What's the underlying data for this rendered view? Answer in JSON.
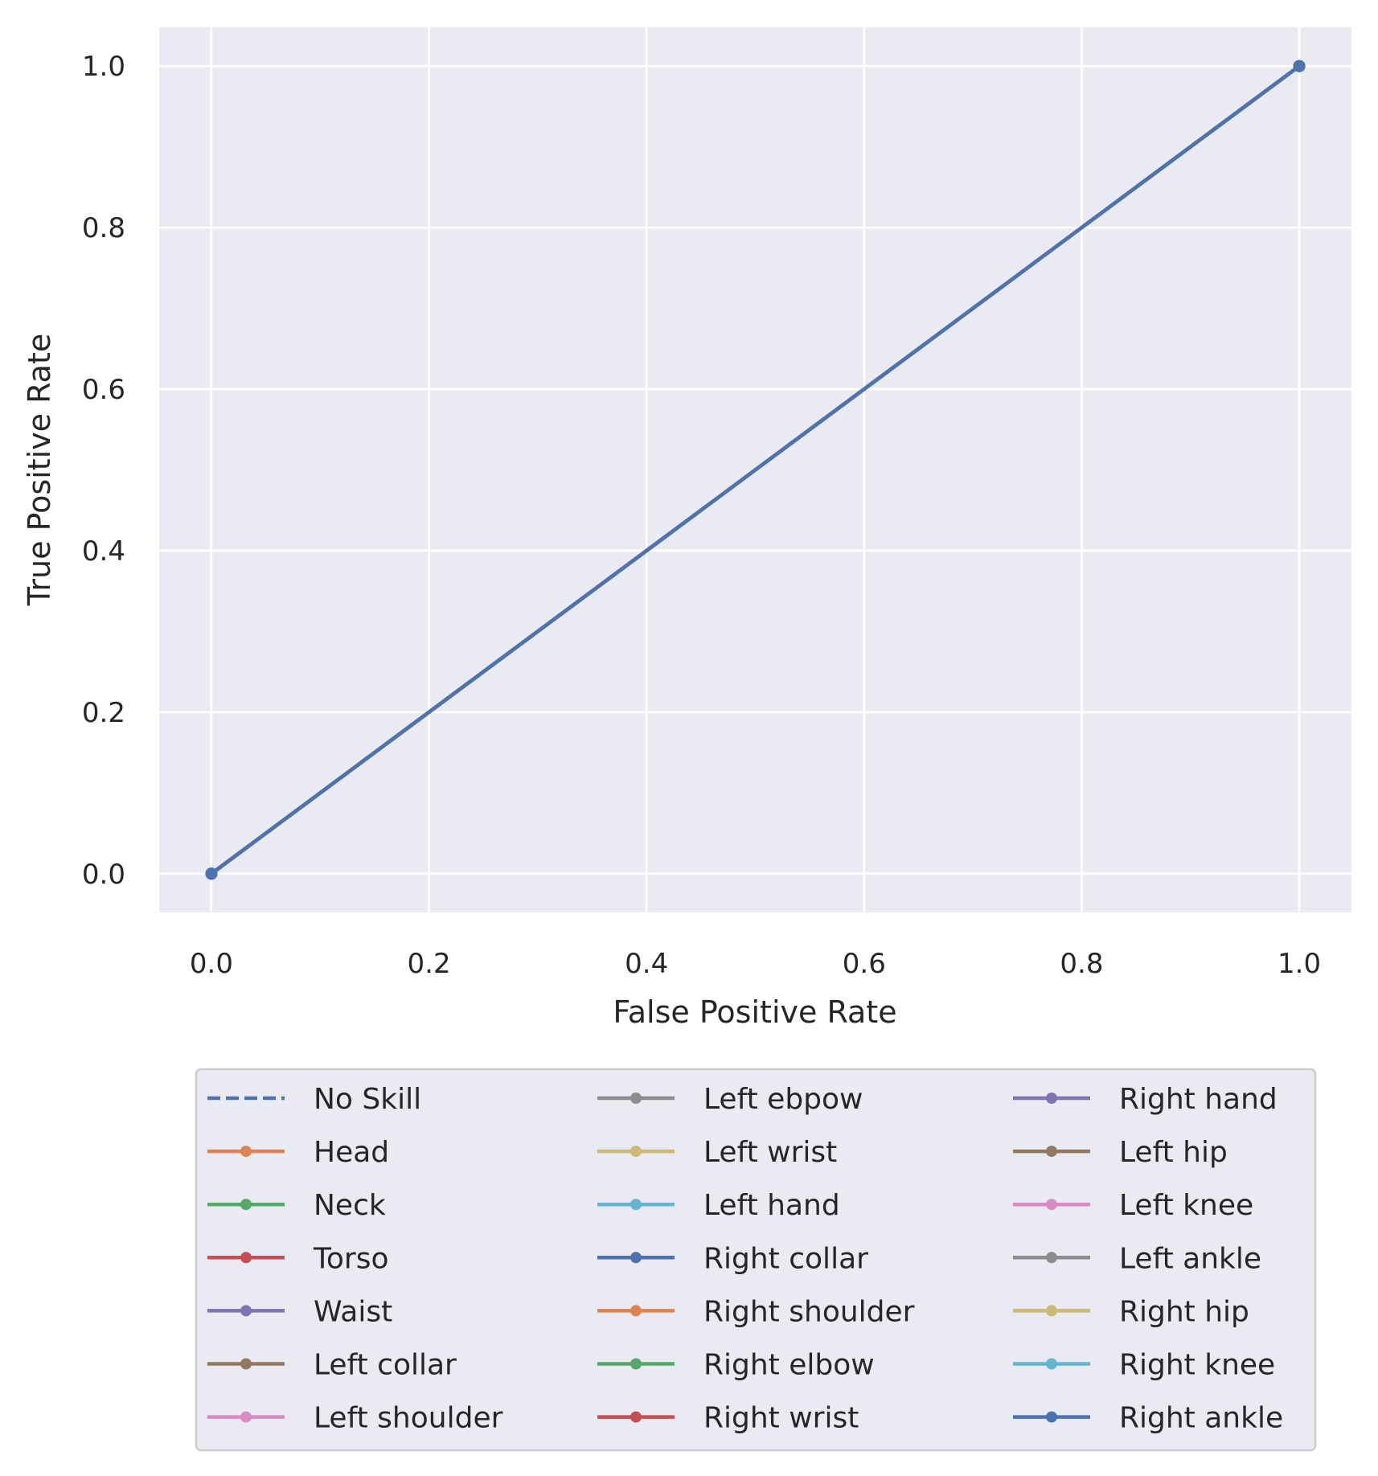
{
  "chart_data": {
    "type": "line",
    "title": "",
    "xlabel": "False Positive Rate",
    "ylabel": "True Positive Rate",
    "xlim": [
      -0.048,
      1.048
    ],
    "ylim": [
      -0.048,
      1.048
    ],
    "xticks": [
      0.0,
      0.2,
      0.4,
      0.6,
      0.8,
      1.0
    ],
    "yticks": [
      0.0,
      0.2,
      0.4,
      0.6,
      0.8,
      1.0
    ],
    "xtick_labels": [
      "0.0",
      "0.2",
      "0.4",
      "0.6",
      "0.8",
      "1.0"
    ],
    "ytick_labels": [
      "0.0",
      "0.2",
      "0.4",
      "0.6",
      "0.8",
      "1.0"
    ],
    "grid": true,
    "background": "#eaeaf2",
    "legend_placement": "below",
    "legend_columns": 3,
    "series": [
      {
        "name": "No Skill",
        "style": "dashed",
        "marker": false,
        "color": "#4c72b0",
        "x": [
          0,
          1
        ],
        "y": [
          0,
          1
        ]
      },
      {
        "name": "Head",
        "style": "solid",
        "marker": true,
        "color": "#dd8452",
        "x": [
          0,
          1
        ],
        "y": [
          0,
          1
        ]
      },
      {
        "name": "Neck",
        "style": "solid",
        "marker": true,
        "color": "#55a868",
        "x": [
          0,
          1
        ],
        "y": [
          0,
          1
        ]
      },
      {
        "name": "Torso",
        "style": "solid",
        "marker": true,
        "color": "#c44e52",
        "x": [
          0,
          1
        ],
        "y": [
          0,
          1
        ]
      },
      {
        "name": "Waist",
        "style": "solid",
        "marker": true,
        "color": "#8172b3",
        "x": [
          0,
          1
        ],
        "y": [
          0,
          1
        ]
      },
      {
        "name": "Left collar",
        "style": "solid",
        "marker": true,
        "color": "#937860",
        "x": [
          0,
          1
        ],
        "y": [
          0,
          1
        ]
      },
      {
        "name": "Left shoulder",
        "style": "solid",
        "marker": true,
        "color": "#da8bc3",
        "x": [
          0,
          1
        ],
        "y": [
          0,
          1
        ]
      },
      {
        "name": "Left ebpow",
        "style": "solid",
        "marker": true,
        "color": "#8c8c8c",
        "x": [
          0,
          1
        ],
        "y": [
          0,
          1
        ]
      },
      {
        "name": "Left wrist",
        "style": "solid",
        "marker": true,
        "color": "#ccb974",
        "x": [
          0,
          1
        ],
        "y": [
          0,
          1
        ]
      },
      {
        "name": "Left hand",
        "style": "solid",
        "marker": true,
        "color": "#64b5cd",
        "x": [
          0,
          1
        ],
        "y": [
          0,
          1
        ]
      },
      {
        "name": "Right collar",
        "style": "solid",
        "marker": true,
        "color": "#4c72b0",
        "x": [
          0,
          1
        ],
        "y": [
          0,
          1
        ]
      },
      {
        "name": "Right shoulder",
        "style": "solid",
        "marker": true,
        "color": "#dd8452",
        "x": [
          0,
          1
        ],
        "y": [
          0,
          1
        ]
      },
      {
        "name": "Right elbow",
        "style": "solid",
        "marker": true,
        "color": "#55a868",
        "x": [
          0,
          1
        ],
        "y": [
          0,
          1
        ]
      },
      {
        "name": "Right wrist",
        "style": "solid",
        "marker": true,
        "color": "#c44e52",
        "x": [
          0,
          1
        ],
        "y": [
          0,
          1
        ]
      },
      {
        "name": "Right hand",
        "style": "solid",
        "marker": true,
        "color": "#8172b3",
        "x": [
          0,
          1
        ],
        "y": [
          0,
          1
        ]
      },
      {
        "name": "Left hip",
        "style": "solid",
        "marker": true,
        "color": "#937860",
        "x": [
          0,
          1
        ],
        "y": [
          0,
          1
        ]
      },
      {
        "name": "Left knee",
        "style": "solid",
        "marker": true,
        "color": "#da8bc3",
        "x": [
          0,
          1
        ],
        "y": [
          0,
          1
        ]
      },
      {
        "name": "Left ankle",
        "style": "solid",
        "marker": true,
        "color": "#8c8c8c",
        "x": [
          0,
          1
        ],
        "y": [
          0,
          1
        ]
      },
      {
        "name": "Right hip",
        "style": "solid",
        "marker": true,
        "color": "#ccb974",
        "x": [
          0,
          1
        ],
        "y": [
          0,
          1
        ]
      },
      {
        "name": "Right knee",
        "style": "solid",
        "marker": true,
        "color": "#64b5cd",
        "x": [
          0,
          1
        ],
        "y": [
          0,
          1
        ]
      },
      {
        "name": "Right ankle",
        "style": "solid",
        "marker": true,
        "color": "#4c72b0",
        "x": [
          0,
          1
        ],
        "y": [
          0,
          1
        ]
      }
    ]
  }
}
